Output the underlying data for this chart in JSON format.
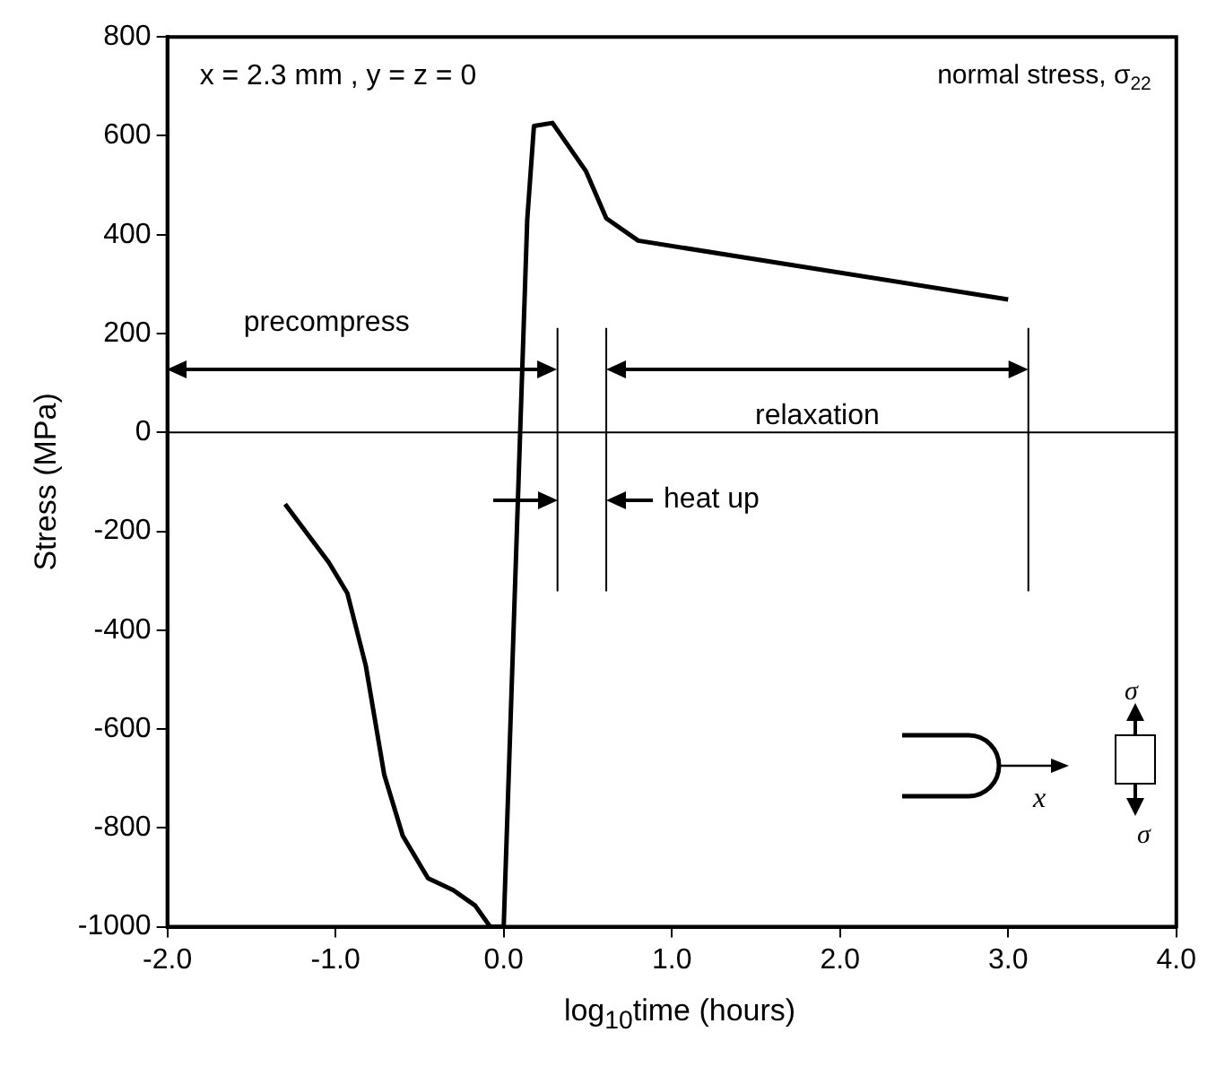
{
  "chart_data": {
    "type": "line",
    "xlabel": "log$_{10}$time (hours)",
    "ylabel": "Stress (MPa)",
    "series": [
      {
        "color": "#000000",
        "x": [
          -1.3,
          -1.04,
          -0.93,
          -0.82,
          -0.71,
          -0.6,
          -0.45,
          -0.3,
          -0.17,
          -0.08,
          0.0,
          0.14,
          0.18,
          0.29,
          0.49,
          0.61,
          0.8,
          3.0
        ],
        "values": [
          -145,
          -263,
          -325,
          -472,
          -693,
          -816,
          -902,
          -926,
          -957,
          -1000,
          -1000,
          430,
          620,
          626,
          528,
          433,
          388,
          269
        ]
      }
    ],
    "xlim": [
      -2,
      4
    ],
    "xticks": [
      {
        "value": -2,
        "label": "-2.0"
      },
      {
        "value": -1,
        "label": "-1.0"
      },
      {
        "value": 0,
        "label": "0.0"
      },
      {
        "value": 1,
        "label": "1.0"
      },
      {
        "value": 2,
        "label": "2.0"
      },
      {
        "value": 3,
        "label": "3.0"
      },
      {
        "value": 4,
        "label": "4.0"
      }
    ],
    "ylim": [
      -1000,
      800
    ],
    "yticks": [
      -1000,
      -800,
      -600,
      -400,
      -200,
      0,
      200,
      400,
      600,
      800
    ],
    "ref_lines": [
      {
        "axis": "y",
        "value": 0
      },
      {
        "axis": "x",
        "value": 0.32
      },
      {
        "axis": "x",
        "value": 0.61
      },
      {
        "axis": "x",
        "value": 3.12
      }
    ],
    "annotations": [
      "x = 2.3 mm , y = z = 0",
      "normal stress, σ$_{22}$",
      "precompress",
      "heat up",
      "relaxation",
      "x",
      "σ",
      "σ"
    ],
    "legend": false,
    "grid": false
  }
}
